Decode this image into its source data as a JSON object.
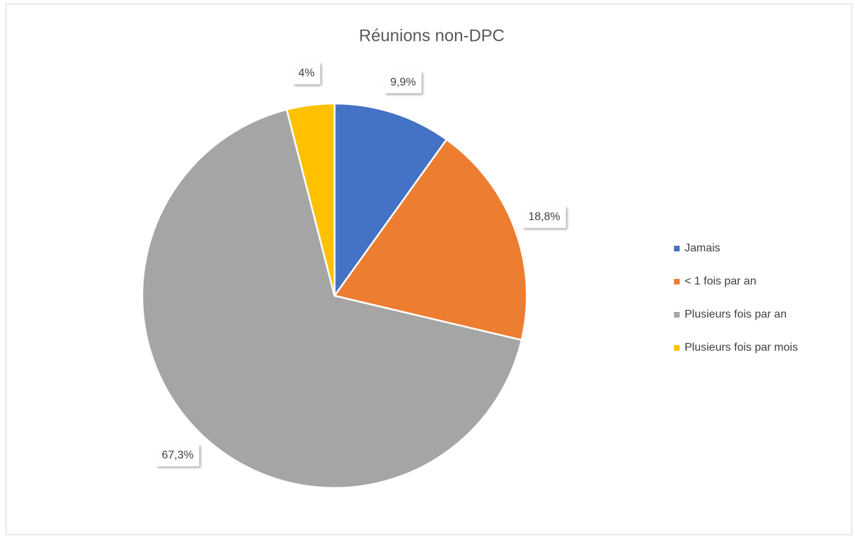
{
  "chart_data": {
    "type": "pie",
    "title": "Réunions non-DPC",
    "categories": [
      "Jamais",
      "< 1 fois par an",
      "Plusieurs fois par an",
      "Plusieurs fois par mois"
    ],
    "values": [
      9.9,
      18.8,
      67.3,
      4
    ],
    "value_labels": [
      "9,9%",
      "18,8%",
      "67,3%",
      "4%"
    ],
    "colors": [
      "#4472c4",
      "#ed7d31",
      "#a5a5a5",
      "#ffc000"
    ],
    "legend": "right"
  }
}
